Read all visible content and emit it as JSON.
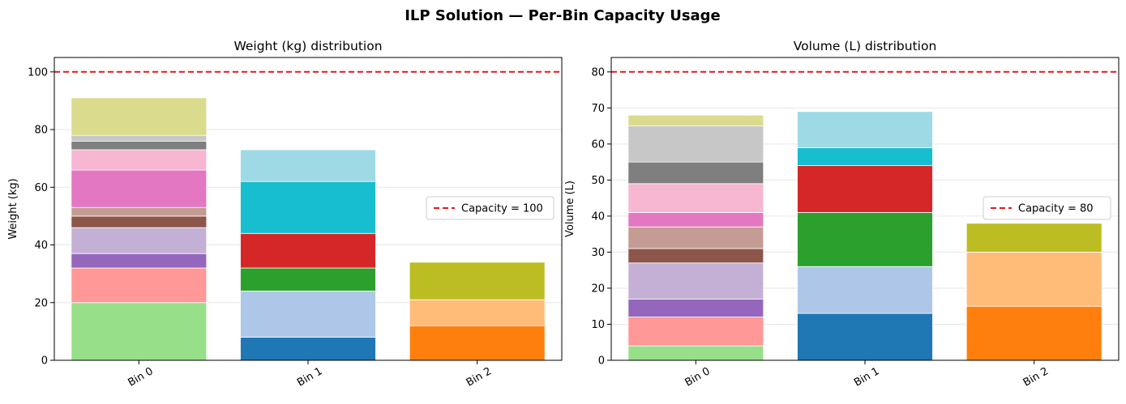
{
  "figure_title": "ILP Solution — Per-Bin Capacity Usage",
  "chart_data": [
    {
      "type": "bar",
      "stacked": true,
      "title": "Weight (kg) distribution",
      "xlabel": "",
      "ylabel": "Weight (kg)",
      "categories": [
        "Bin 0",
        "Bin 1",
        "Bin 2"
      ],
      "ylim": [
        0,
        105
      ],
      "yticks": [
        0,
        20,
        40,
        60,
        80,
        100
      ],
      "grid": "y",
      "legend_position": "center-right",
      "capacity": {
        "value": 100,
        "label": "Capacity = 100",
        "color": "#e31a1c"
      },
      "stacks": [
        [
          {
            "value": 20,
            "color": "#98df8a"
          },
          {
            "value": 12,
            "color": "#ff9896"
          },
          {
            "value": 5,
            "color": "#9467bd"
          },
          {
            "value": 9,
            "color": "#c5b0d5"
          },
          {
            "value": 4,
            "color": "#8c564b"
          },
          {
            "value": 3,
            "color": "#c49c94"
          },
          {
            "value": 13,
            "color": "#e377c2"
          },
          {
            "value": 7,
            "color": "#f7b6d2"
          },
          {
            "value": 3,
            "color": "#7f7f7f"
          },
          {
            "value": 2,
            "color": "#c7c7c7"
          },
          {
            "value": 13,
            "color": "#dbdb8d"
          }
        ],
        [
          {
            "value": 8,
            "color": "#1f77b4"
          },
          {
            "value": 16,
            "color": "#aec7e8"
          },
          {
            "value": 8,
            "color": "#2ca02c"
          },
          {
            "value": 12,
            "color": "#d62728"
          },
          {
            "value": 18,
            "color": "#17becf"
          },
          {
            "value": 11,
            "color": "#9edae5"
          }
        ],
        [
          {
            "value": 12,
            "color": "#ff7f0e"
          },
          {
            "value": 9,
            "color": "#ffbb78"
          },
          {
            "value": 13,
            "color": "#bcbd22"
          }
        ]
      ]
    },
    {
      "type": "bar",
      "stacked": true,
      "title": "Volume (L) distribution",
      "xlabel": "",
      "ylabel": "Volume (L)",
      "categories": [
        "Bin 0",
        "Bin 1",
        "Bin 2"
      ],
      "ylim": [
        0,
        84
      ],
      "yticks": [
        0,
        10,
        20,
        30,
        40,
        50,
        60,
        70,
        80
      ],
      "grid": "y",
      "legend_position": "center-right",
      "capacity": {
        "value": 80,
        "label": "Capacity = 80",
        "color": "#e31a1c"
      },
      "stacks": [
        [
          {
            "value": 4,
            "color": "#98df8a"
          },
          {
            "value": 8,
            "color": "#ff9896"
          },
          {
            "value": 5,
            "color": "#9467bd"
          },
          {
            "value": 10,
            "color": "#c5b0d5"
          },
          {
            "value": 4,
            "color": "#8c564b"
          },
          {
            "value": 6,
            "color": "#c49c94"
          },
          {
            "value": 4,
            "color": "#e377c2"
          },
          {
            "value": 8,
            "color": "#f7b6d2"
          },
          {
            "value": 6,
            "color": "#7f7f7f"
          },
          {
            "value": 10,
            "color": "#c7c7c7"
          },
          {
            "value": 3,
            "color": "#dbdb8d"
          }
        ],
        [
          {
            "value": 13,
            "color": "#1f77b4"
          },
          {
            "value": 13,
            "color": "#aec7e8"
          },
          {
            "value": 15,
            "color": "#2ca02c"
          },
          {
            "value": 13,
            "color": "#d62728"
          },
          {
            "value": 5,
            "color": "#17becf"
          },
          {
            "value": 10,
            "color": "#9edae5"
          }
        ],
        [
          {
            "value": 15,
            "color": "#ff7f0e"
          },
          {
            "value": 15,
            "color": "#ffbb78"
          },
          {
            "value": 8,
            "color": "#bcbd22"
          }
        ]
      ]
    }
  ]
}
